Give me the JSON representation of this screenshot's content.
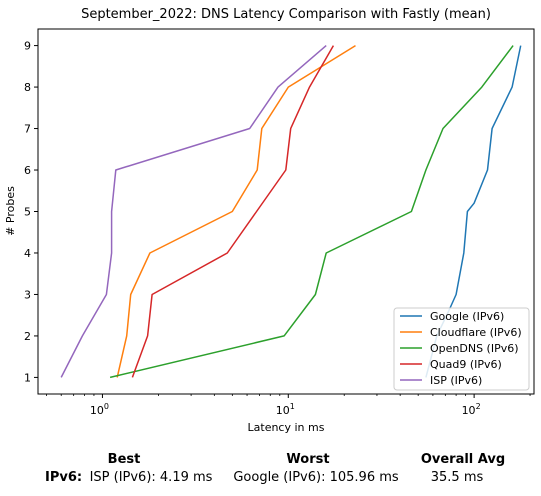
{
  "chart_data": {
    "type": "line",
    "title": "September_2022: DNS Latency Comparison with Fastly (mean)",
    "xlabel": "Latency in ms",
    "ylabel": "# Probes",
    "xscale": "log",
    "xlim": [
      0.45,
      210
    ],
    "ylim": [
      0.6,
      9.4
    ],
    "xticks": [
      {
        "value": 1,
        "label": "10^0"
      },
      {
        "value": 10,
        "label": "10^1"
      },
      {
        "value": 100,
        "label": "10^2"
      }
    ],
    "yticks": [
      1,
      2,
      3,
      4,
      5,
      6,
      7,
      8,
      9
    ],
    "grid": false,
    "legend_position": "bottom-right",
    "series": [
      {
        "name": "Google (IPv6)",
        "color": "#1f77b4",
        "x": [
          55,
          63,
          73,
          80,
          88,
          92,
          100,
          118,
          125,
          160,
          178
        ],
        "y": [
          1,
          2,
          2.6,
          3,
          4,
          5,
          5.2,
          6,
          7,
          8,
          9
        ]
      },
      {
        "name": "Cloudflare (IPv6)",
        "color": "#ff7f0e",
        "x": [
          1.2,
          1.35,
          1.42,
          1.8,
          5.0,
          6.8,
          7.2,
          10.0,
          23.0
        ],
        "y": [
          1,
          2,
          3,
          4,
          5,
          6,
          7,
          8,
          9
        ]
      },
      {
        "name": "OpenDNS (IPv6)",
        "color": "#2ca02c",
        "x": [
          1.1,
          9.5,
          14.0,
          16.0,
          46.0,
          55.0,
          68.0,
          110.0,
          162.0
        ],
        "y": [
          1,
          2,
          3,
          4,
          5,
          6,
          7,
          8,
          9
        ]
      },
      {
        "name": "Quad9 (IPv6)",
        "color": "#d62728",
        "x": [
          1.45,
          1.75,
          1.85,
          4.7,
          9.7,
          10.3,
          13.0,
          17.5
        ],
        "y": [
          1,
          2,
          3,
          4,
          6,
          7,
          8,
          9
        ]
      },
      {
        "name": "ISP (IPv6)",
        "color": "#9467bd",
        "x": [
          0.6,
          0.78,
          1.05,
          1.12,
          1.12,
          1.18,
          6.2,
          8.8,
          16.0
        ],
        "y": [
          1,
          2,
          3,
          4,
          5,
          6,
          7,
          8,
          9
        ]
      }
    ]
  },
  "summary": {
    "row_label": "IPv6:",
    "best_header": "Best",
    "worst_header": "Worst",
    "avg_header": "Overall Avg",
    "best_value": "ISP (IPv6): 4.19 ms",
    "worst_value": "Google (IPv6): 105.96 ms",
    "avg_value": "35.5 ms"
  }
}
